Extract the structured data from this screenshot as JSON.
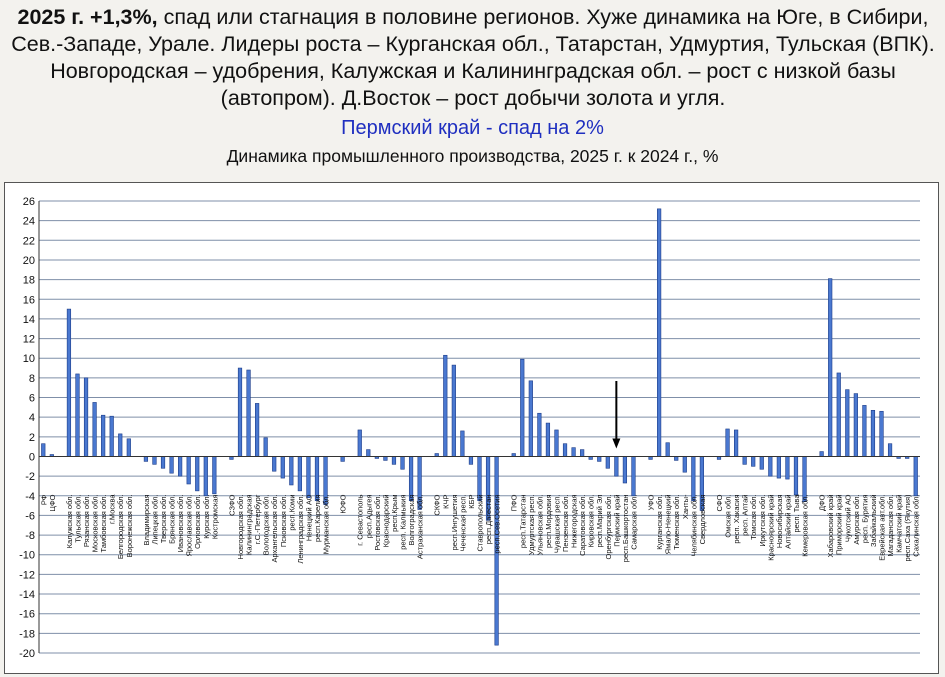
{
  "headline": {
    "bold": "2025 г. +1,3%,",
    "text": " спад или стагнация в половине регионов. Хуже динамика на Юге, в Сибири, Сев.-Западе, Урале. Лидеры роста – Курганская обл., Татарстан, Удмуртия, Тульская (ВПК). Новгородская – удобрения, Калужская и Калининградская обл. – рост с низкой базы (автопром). Д.Восток – рост добычи золота и угля."
  },
  "subtitle": "Пермский край -  спад на 2%",
  "colors": {
    "bar": "#4a78d0",
    "bar_edge": "#1c3c88",
    "grid": "#7f8fa8",
    "subtitle": "#1f2fc0"
  },
  "chart_data": {
    "type": "bar",
    "title": "Динамика промышленного производства, 2025 г. к 2024 г., %",
    "ylim": [
      -20,
      26
    ],
    "yticks": [
      26,
      24,
      22,
      20,
      18,
      16,
      14,
      12,
      10,
      8,
      6,
      4,
      2,
      0,
      -2,
      -4,
      -6,
      -8,
      -10,
      -12,
      -14,
      -16,
      -18,
      -20
    ],
    "grid": true,
    "annotation": {
      "type": "arrow",
      "target": "Пермский край"
    },
    "categories": [
      "РФ",
      "ЦФО",
      "",
      "Калужская обл.",
      "Тульская обл.",
      "Рязанская обл.",
      "Московская обл.",
      "Тамбовская обл.",
      "г.Москва",
      "Белгородская обл.",
      "Воронежская обл.",
      "",
      "Владимирская",
      "Липецкая обл.",
      "Тверская обл.",
      "Брянская обл.",
      "Ивановская обл.",
      "Ярославская обл.",
      "Орловская обл.",
      "Курская обл.",
      "Костромская",
      "",
      "СЗФО",
      "Новгородская обл.",
      "Калининградская",
      "г.С.-Петербург",
      "Вологодская обл.",
      "Архангельская обл.",
      "Псковская обл.",
      "респ.Коми",
      "Ленинградская обл.",
      "Ненецкий АО",
      "респ.Карелия",
      "Мурманская обл.",
      "",
      "ЮФО",
      "",
      "г. Севастополь",
      "респ.Адыгея",
      "Ростовская обл.",
      "Краснодарский",
      "респ.Крым",
      "респ. Калмыкия",
      "Волгоградская",
      "Астраханская обл.",
      "",
      "СКФО",
      "КЧР",
      "респ.Ингушетия",
      "Чеченская респ.",
      "КБР",
      "Ставропольский",
      "респ.Дагестан",
      "респ.Сев.Осетия",
      "",
      "ПФО",
      "респ.Татарстан",
      "Удмуртская респ.",
      "Ульяновская обл.",
      "респ.Мордовия",
      "Чувашская респ.",
      "Пензенская обл.",
      "Нижегородская",
      "Саратовская обл.",
      "Кировская обл.",
      "респ.Марий Эл",
      "Оренбургская обл.",
      "Пермский край",
      "респ.Башкортостан",
      "Самарская обл.",
      "",
      "УФО",
      "Курганская обл.",
      "Ямало-Ненецкий",
      "Тюменская обл.",
      "Ханты-",
      "Челябинская обл.",
      "Свердловская",
      "",
      "СФО",
      "Омская обл.",
      "респ. Хакасия",
      "респ. Алтай",
      "Томская обл.",
      "Иркутская обл.",
      "Красноярский край",
      "Новосибирская",
      "Алтайский край",
      "респ. Тыва",
      "Кемеровская обл.",
      "",
      "ДФО",
      "Хабаровский край",
      "Приморский край",
      "Чукотский АО",
      "Амурская обл.",
      "респ. Бурятия",
      "Забайкальский",
      "Еврейская авт.обл.",
      "Магаданская обл.",
      "Камчатский край",
      "респ.Саха (Якутия)",
      "Сахалинская обл."
    ],
    "values": [
      1.3,
      0.2,
      0,
      15.0,
      8.4,
      8.0,
      5.5,
      4.2,
      4.1,
      2.3,
      1.8,
      0,
      -0.5,
      -0.8,
      -1.2,
      -1.7,
      -2.0,
      -2.8,
      -3.5,
      -4.0,
      -3.8,
      0,
      -0.3,
      9.0,
      8.8,
      5.4,
      1.9,
      -1.5,
      -2.2,
      -2.9,
      -3.5,
      -4.2,
      -4.5,
      -4.9,
      0,
      -0.5,
      0,
      2.7,
      0.7,
      -0.2,
      -0.4,
      -0.8,
      -1.3,
      -4.5,
      -5.4,
      0,
      0.3,
      10.3,
      9.3,
      2.6,
      -0.8,
      -4.5,
      -6.5,
      -19.2,
      0,
      0.3,
      9.9,
      7.7,
      4.4,
      3.4,
      2.7,
      1.3,
      0.9,
      0.7,
      -0.3,
      -0.5,
      -1.2,
      -2.0,
      -2.7,
      -4.0,
      0,
      -0.3,
      25.2,
      1.4,
      -0.4,
      -1.6,
      -4.5,
      -5.5,
      0,
      -0.3,
      2.8,
      2.7,
      -0.8,
      -1.0,
      -1.3,
      -2.0,
      -2.2,
      -2.3,
      -3.9,
      -4.6,
      0,
      0.5,
      18.1,
      8.5,
      6.8,
      6.4,
      5.2,
      4.7,
      4.6,
      1.3,
      -0.2,
      -0.2,
      -4.0
    ]
  }
}
